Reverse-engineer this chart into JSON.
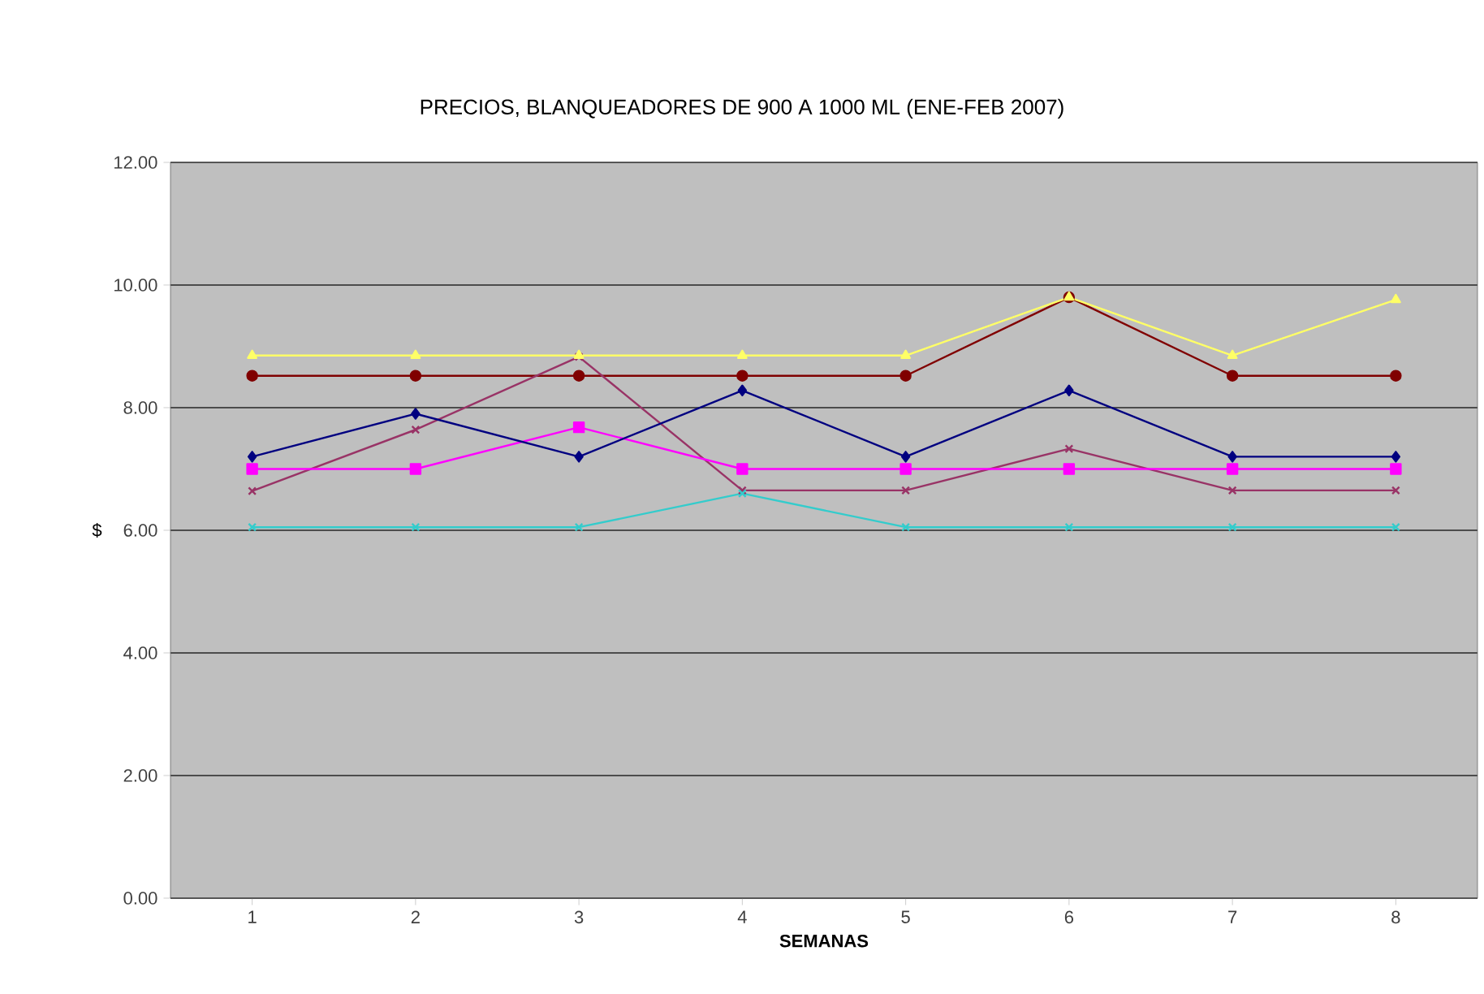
{
  "chart_data": {
    "type": "line",
    "title": "PRECIOS, BLANQUEADORES DE 900 A 1000 ML (ENE-FEB 2007)",
    "xlabel": "SEMANAS",
    "ylabel": "$",
    "categories": [
      "1",
      "2",
      "3",
      "4",
      "5",
      "6",
      "7",
      "8"
    ],
    "series": [
      {
        "color": "#000080",
        "marker": "diamond",
        "values": [
          7.2,
          7.9,
          7.2,
          8.28,
          7.2,
          8.28,
          7.2,
          7.2
        ]
      },
      {
        "color": "#ff00ff",
        "marker": "square",
        "values": [
          7.0,
          7.0,
          7.68,
          7.0,
          7.0,
          7.0,
          7.0,
          7.0
        ]
      },
      {
        "color": "#ffff66",
        "marker": "triangle",
        "values": [
          8.85,
          8.85,
          8.85,
          8.85,
          8.85,
          9.8,
          8.85,
          9.76
        ]
      },
      {
        "color": "#33cccc",
        "marker": "cross",
        "values": [
          6.05,
          6.05,
          6.05,
          6.6,
          6.05,
          6.05,
          6.05,
          6.05
        ]
      },
      {
        "color": "#993366",
        "marker": "cross",
        "values": [
          6.64,
          7.64,
          8.83,
          6.65,
          6.65,
          7.33,
          6.65,
          6.65
        ]
      },
      {
        "color": "#800000",
        "marker": "circle",
        "values": [
          8.52,
          8.52,
          8.52,
          8.52,
          8.52,
          9.8,
          8.52,
          8.52
        ]
      }
    ],
    "ylim": [
      0,
      12
    ],
    "yticks": [
      {
        "value": 0,
        "label": "0.00"
      },
      {
        "value": 2,
        "label": "2.00"
      },
      {
        "value": 4,
        "label": "4.00"
      },
      {
        "value": 6,
        "label": "6.00"
      },
      {
        "value": 8,
        "label": "8.00"
      },
      {
        "value": 10,
        "label": "10.00"
      },
      {
        "value": 12,
        "label": "12.00"
      }
    ],
    "grid": "y"
  }
}
